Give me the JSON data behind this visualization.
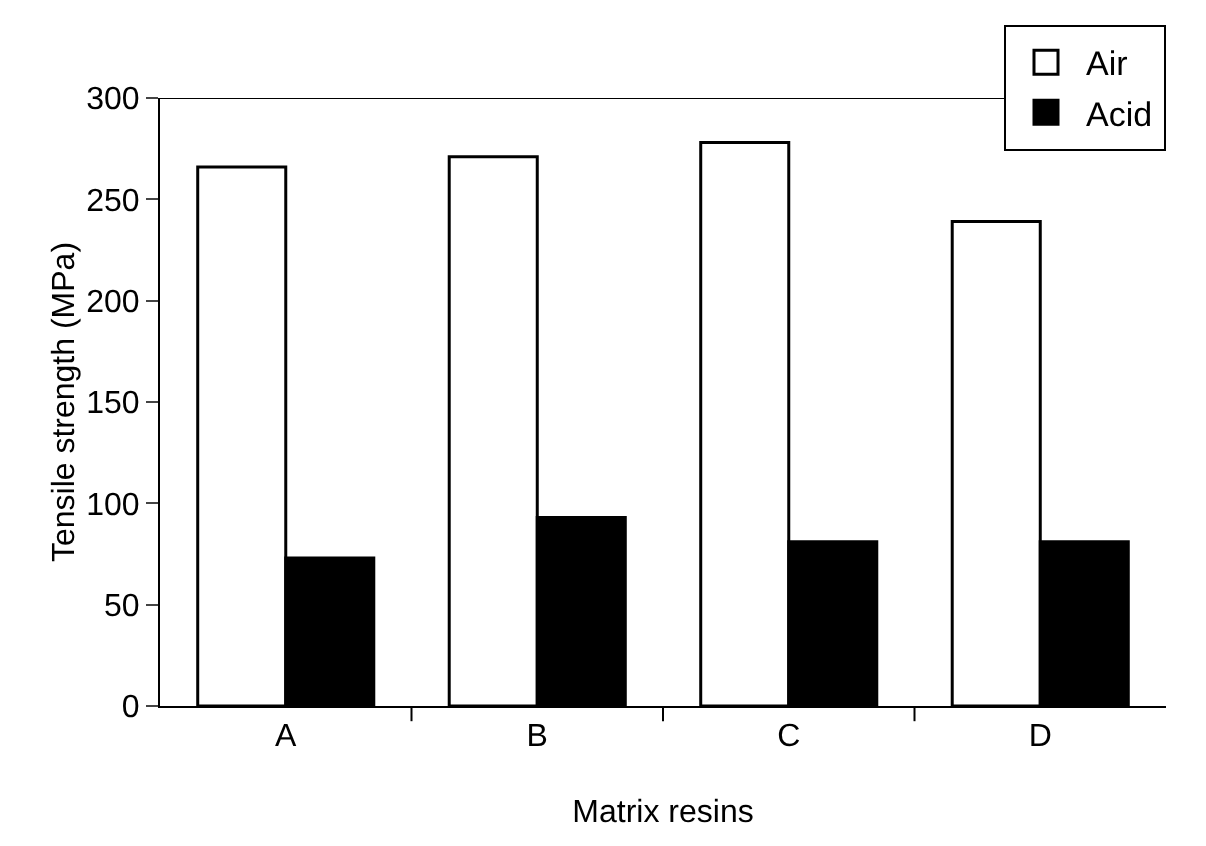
{
  "chart_data": {
    "type": "bar",
    "xlabel": "Matrix resins",
    "ylabel": "Tensile strength (MPa)",
    "categories": [
      "A",
      "B",
      "C",
      "D"
    ],
    "series": [
      {
        "name": "Air",
        "color": "#ffffff",
        "values": [
          266,
          271,
          278,
          239
        ]
      },
      {
        "name": "Acid",
        "color": "#000000",
        "values": [
          73,
          93,
          81,
          81
        ]
      }
    ],
    "ylim": [
      0,
      300
    ],
    "yticks": [
      0,
      50,
      100,
      150,
      200,
      250,
      300
    ],
    "grid": false,
    "legend": "top right"
  }
}
